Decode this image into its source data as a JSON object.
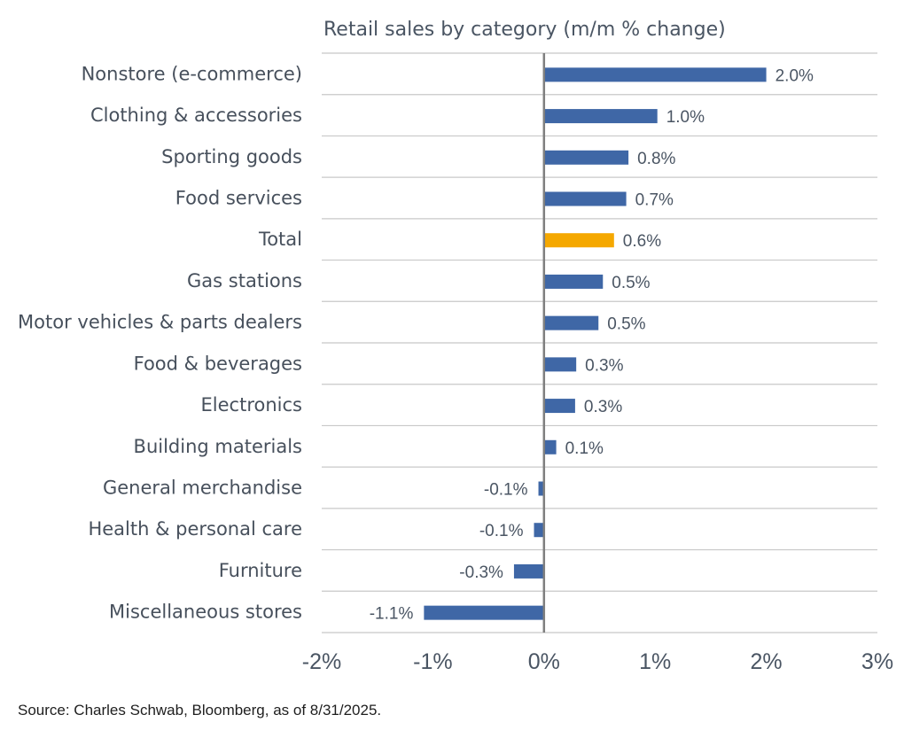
{
  "chart_data": {
    "type": "bar",
    "orientation": "horizontal",
    "title": "Retail sales by category (m/m % change)",
    "xlabel": "",
    "ylabel": "",
    "xlim": [
      -2,
      3
    ],
    "xticks": [
      -2,
      -1,
      0,
      1,
      2,
      3
    ],
    "xtick_labels": [
      "-2%",
      "-1%",
      "0%",
      "1%",
      "2%",
      "3%"
    ],
    "grid": "horizontal separators between categories",
    "legend": "none",
    "categories": [
      "Nonstore (e-commerce)",
      "Clothing & accessories",
      "Sporting goods",
      "Food services",
      "Total",
      "Gas stations",
      "Motor vehicles & parts dealers",
      "Food & beverages",
      "Electronics",
      "Building materials",
      "General merchandise",
      "Health & personal care",
      "Furniture",
      "Miscellaneous stores"
    ],
    "values": [
      2.0,
      1.02,
      0.76,
      0.74,
      0.63,
      0.53,
      0.49,
      0.29,
      0.28,
      0.11,
      -0.05,
      -0.09,
      -0.27,
      -1.08
    ],
    "data_labels": [
      "2.0%",
      "1.0%",
      "0.8%",
      "0.7%",
      "0.6%",
      "0.5%",
      "0.5%",
      "0.3%",
      "0.3%",
      "0.1%",
      "-0.1%",
      "-0.1%",
      "-0.3%",
      "-1.1%"
    ],
    "highlight_category": "Total",
    "colors": {
      "bar": "#3f67a6",
      "highlight": "#f5a800",
      "grid": "#c8c8c8",
      "zero_axis": "#7f7f7f"
    }
  },
  "footer": {
    "source": "Source: Charles Schwab, Bloomberg, as of 8/31/2025."
  }
}
